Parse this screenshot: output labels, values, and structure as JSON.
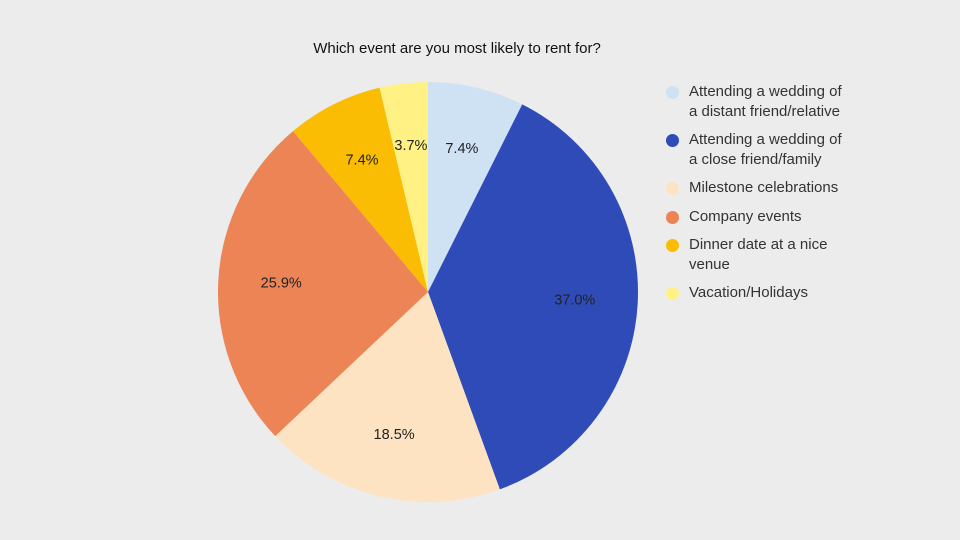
{
  "chart_data": {
    "type": "pie",
    "title": "Which event are you most likely to rent for?",
    "legend_position": "right",
    "start_angle_deg": 0,
    "direction": "clockwise",
    "slices": [
      {
        "label": "Attending a wedding of a distant friend/relative",
        "value": 7.4,
        "value_label": "7.4%",
        "color": "#cfe2f3"
      },
      {
        "label": "Attending a wedding of a close friend/family",
        "value": 37.0,
        "value_label": "37.0%",
        "color": "#2f4bb8"
      },
      {
        "label": "Milestone celebrations",
        "value": 18.5,
        "value_label": "18.5%",
        "color": "#fde3c2"
      },
      {
        "label": "Company events",
        "value": 25.9,
        "value_label": "25.9%",
        "color": "#ec8456"
      },
      {
        "label": "Dinner date at a nice venue",
        "value": 7.4,
        "value_label": "7.4%",
        "color": "#fbbc04"
      },
      {
        "label": "Vacation/Holidays",
        "value": 3.7,
        "value_label": "3.7%",
        "color": "#fff183"
      }
    ]
  }
}
